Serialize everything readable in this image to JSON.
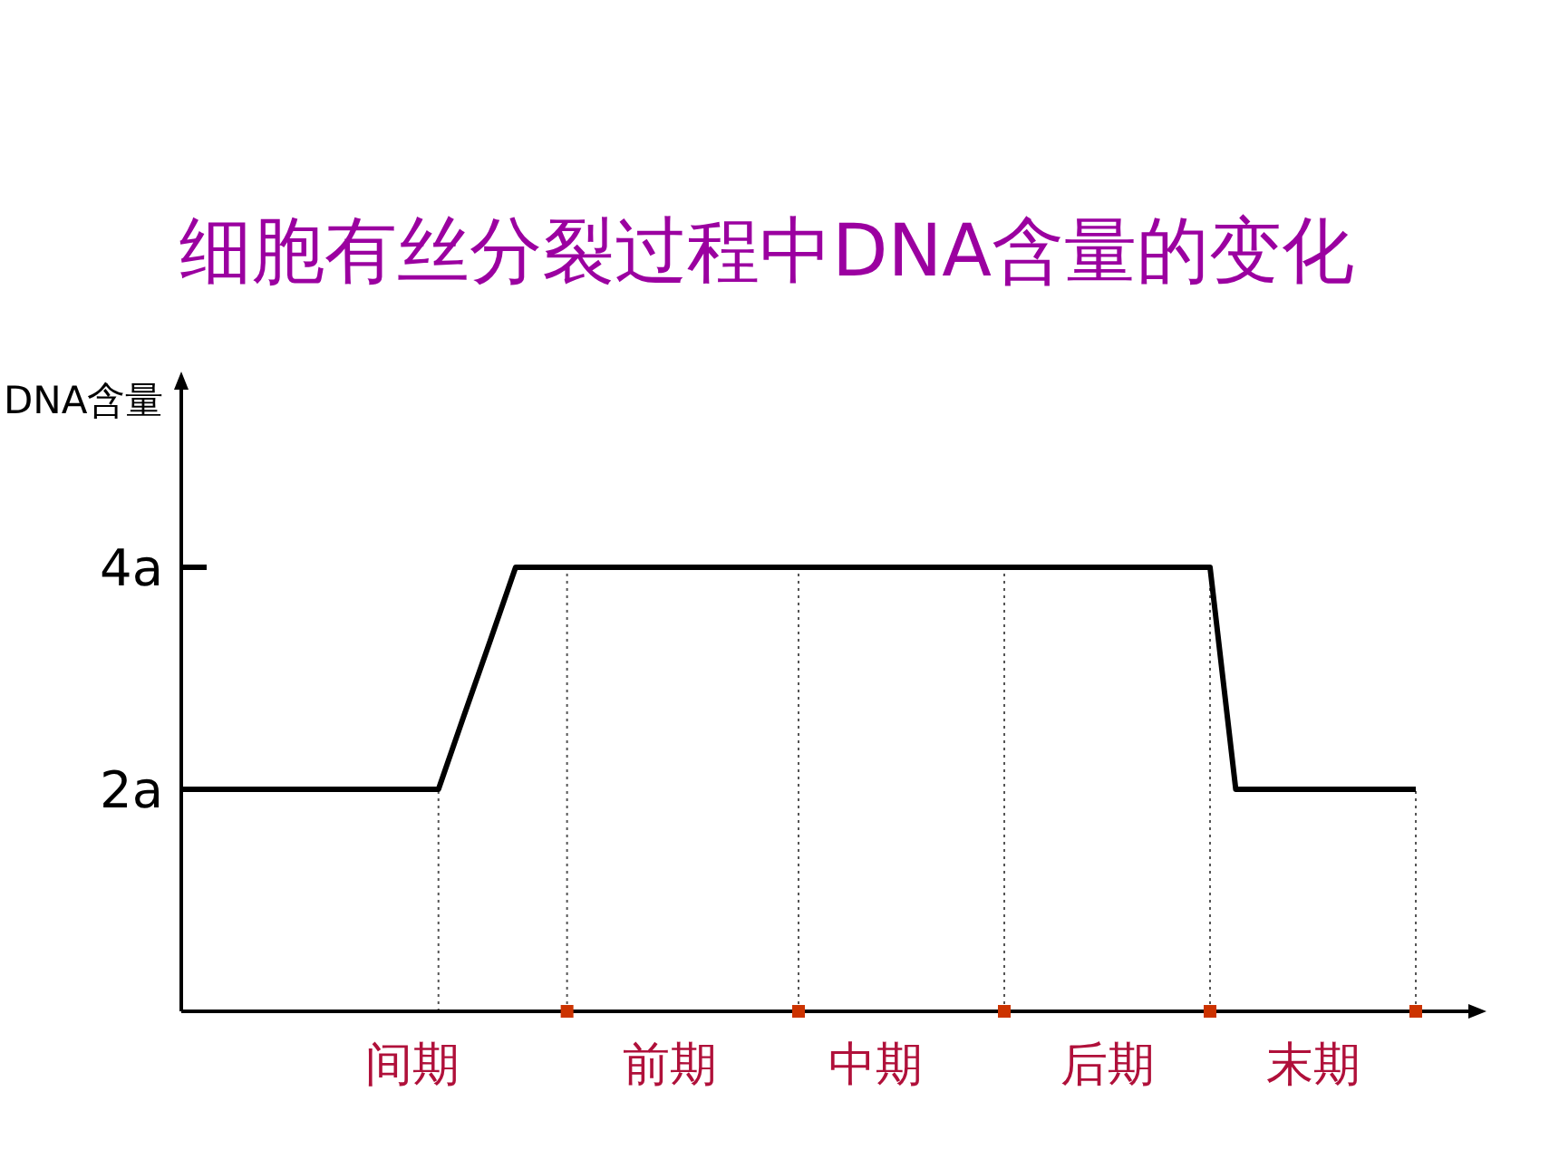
{
  "chart_data": {
    "type": "line",
    "title": "细胞有丝分裂过程中DNA含量的变化",
    "ylabel": "DNA含量",
    "categories": [
      null,
      null,
      null,
      null,
      null,
      null,
      null,
      null,
      null,
      "间期",
      null,
      null,
      null,
      null,
      null,
      null,
      null,
      null,
      null,
      "前期",
      null,
      null,
      null,
      null,
      null,
      null,
      null,
      "中期",
      null,
      null,
      null,
      null,
      null,
      null,
      null,
      null,
      "后期",
      null,
      null,
      null,
      null,
      null,
      null,
      null,
      "末期",
      null,
      null,
      null,
      null
    ],
    "series": [
      {
        "color": "#000000",
        "values": [
          2,
          2,
          2,
          2,
          2,
          2,
          2,
          2,
          2,
          2,
          2,
          2.67,
          3.33,
          4,
          4,
          4,
          4,
          4,
          4,
          4,
          4,
          4,
          4,
          4,
          4,
          4,
          4,
          4,
          4,
          4,
          4,
          4,
          4,
          4,
          4,
          4,
          4,
          4,
          4,
          4,
          4,
          2,
          2,
          2,
          2,
          2,
          2,
          2,
          2
        ]
      },
      {
        "type": "scatter",
        "color": "#cc3300",
        "marker": "square",
        "values": [
          null,
          null,
          null,
          null,
          null,
          null,
          null,
          null,
          null,
          null,
          null,
          null,
          null,
          null,
          null,
          0,
          null,
          null,
          null,
          null,
          null,
          null,
          null,
          null,
          0,
          null,
          null,
          null,
          null,
          null,
          null,
          null,
          0,
          null,
          null,
          null,
          null,
          null,
          null,
          null,
          0,
          null,
          null,
          null,
          null,
          null,
          null,
          null,
          0
        ]
      }
    ],
    "ylim": [
      0,
      5.6
    ],
    "yticks": [
      {
        "value": 2,
        "label": "2a"
      },
      {
        "value": 4,
        "label": "4a"
      }
    ],
    "grid": false,
    "marker": "none",
    "line_style": "solid"
  }
}
